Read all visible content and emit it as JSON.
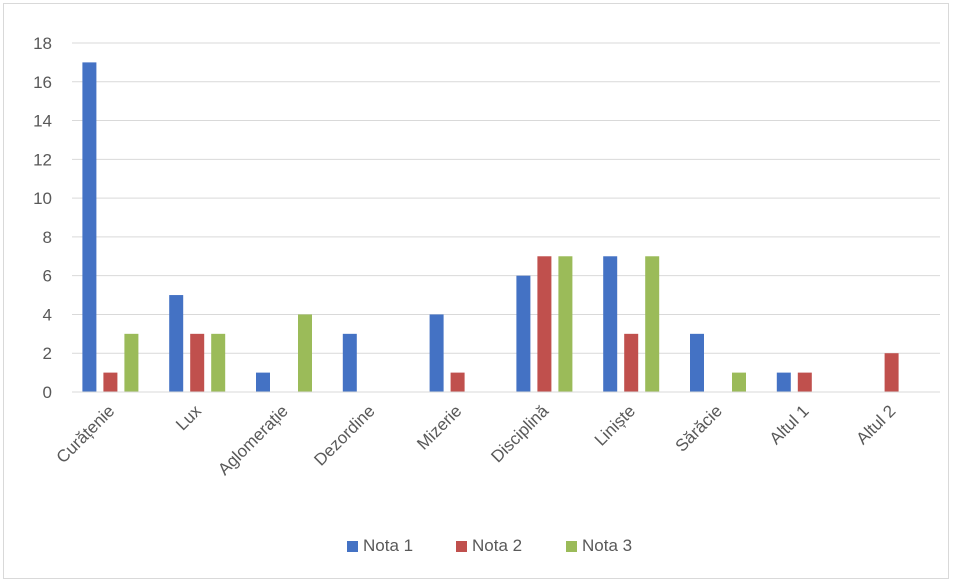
{
  "chart_data": {
    "type": "bar",
    "title": "",
    "xlabel": "",
    "ylabel": "",
    "ylim": [
      0,
      18
    ],
    "yticks": [
      0,
      2,
      4,
      6,
      8,
      10,
      12,
      14,
      16,
      18
    ],
    "grid": true,
    "legend_position": "bottom",
    "categories": [
      "Curățenie",
      "Lux",
      "Aglomerație",
      "Dezordine",
      "Mizerie",
      "Disciplină",
      "Liniște",
      "Sărăcie",
      "Altul 1",
      "Altul 2"
    ],
    "series": [
      {
        "name": "Nota 1",
        "color": "#4472c4",
        "values": [
          17,
          5,
          1,
          3,
          4,
          6,
          7,
          3,
          1,
          0
        ]
      },
      {
        "name": "Nota 2",
        "color": "#c0504d",
        "values": [
          1,
          3,
          0,
          0,
          1,
          7,
          3,
          0,
          1,
          2
        ]
      },
      {
        "name": "Nota 3",
        "color": "#9bbb59",
        "values": [
          3,
          3,
          4,
          0,
          0,
          7,
          7,
          1,
          0,
          0
        ]
      }
    ]
  }
}
